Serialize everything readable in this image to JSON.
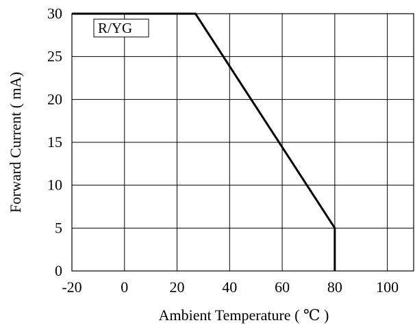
{
  "chart_data": {
    "type": "line",
    "xlabel": "Ambient Temperature ( ℃ )",
    "ylabel": "Forward Current ( mA)",
    "xlim": [
      -20,
      110
    ],
    "ylim": [
      0,
      30
    ],
    "x_ticks": [
      -20,
      0,
      20,
      40,
      60,
      80,
      100
    ],
    "y_ticks": [
      0,
      5,
      10,
      15,
      20,
      25,
      30
    ],
    "x_tick_labels": [
      "-20",
      "0",
      "20",
      "40",
      "60",
      "80",
      "100"
    ],
    "y_tick_labels": [
      "0",
      "5",
      "10",
      "15",
      "20",
      "25",
      "30"
    ],
    "grid": true,
    "legend": {
      "label": "R/YG",
      "placement": "top-left"
    },
    "series": [
      {
        "name": "R/YG",
        "x": [
          -20,
          27,
          80,
          80
        ],
        "y": [
          30,
          30,
          5,
          0
        ],
        "color": "#000000"
      }
    ]
  }
}
